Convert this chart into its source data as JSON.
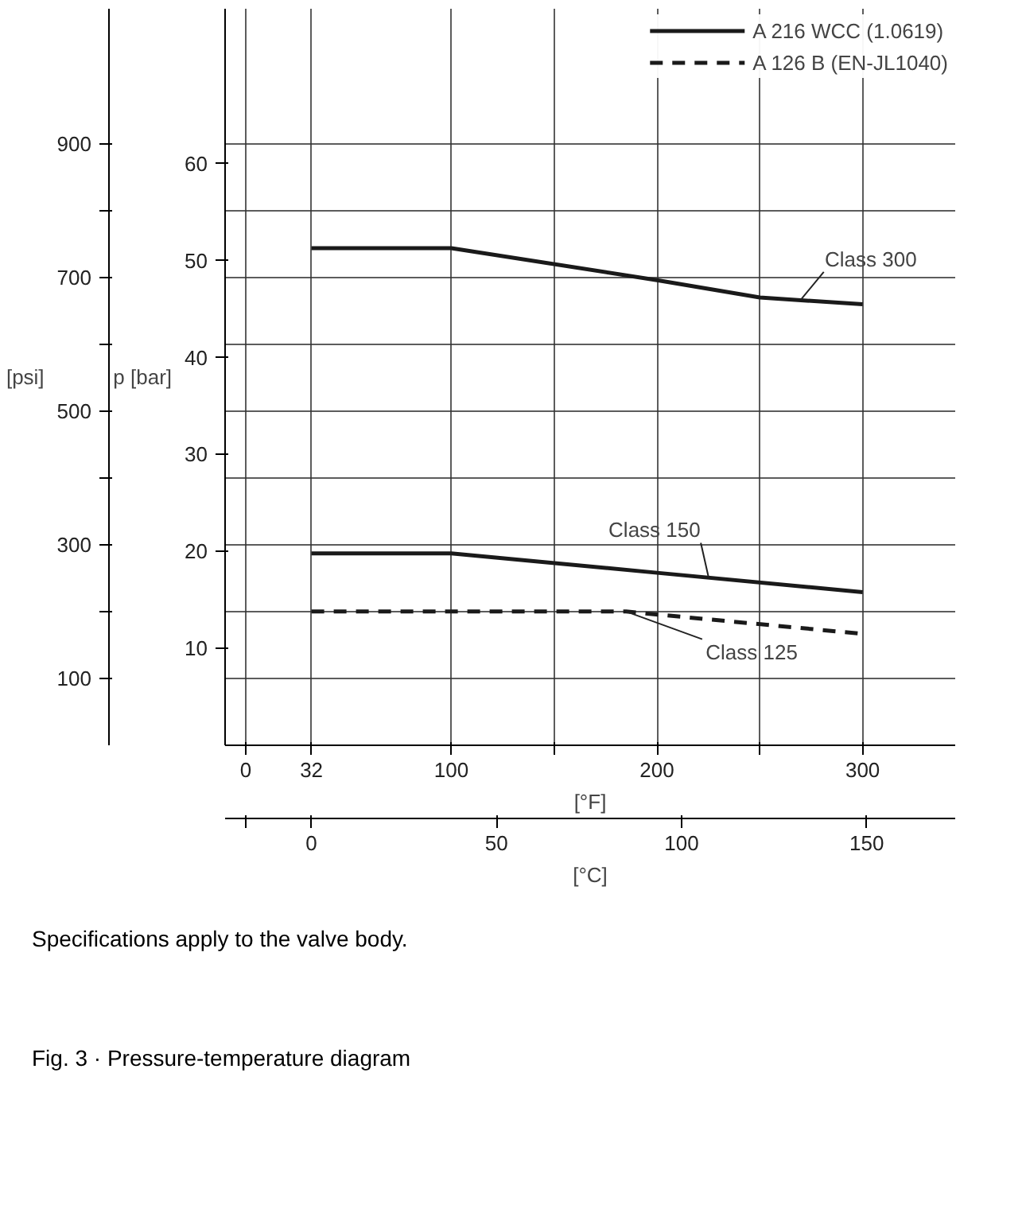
{
  "chart_data": {
    "type": "line",
    "series": [
      {
        "name": "A 216 WCC (1.0619)",
        "color": "#1a1a1a",
        "line_style": "solid",
        "x": [
          32,
          100,
          200,
          250,
          300
        ],
        "values": [
          51.3,
          51.3,
          48.0,
          46.2,
          45.5
        ]
      },
      {
        "color": "#1a1a1a",
        "line_style": "solid",
        "x": [
          32,
          100,
          200,
          300
        ],
        "values": [
          19.8,
          19.8,
          17.8,
          15.8
        ]
      },
      {
        "name": "A 126 B (EN-JL1040)",
        "color": "#1a1a1a",
        "line_style": "dashed",
        "x": [
          32,
          185,
          300
        ],
        "values": [
          13.8,
          13.8,
          11.5
        ]
      }
    ],
    "xlabel": "[°F]",
    "x2label": "[°C]",
    "ylabel": "p [bar]",
    "y2label": "[psi]",
    "xlim": [
      -10,
      345
    ],
    "xticks": [
      0,
      32,
      100,
      {
        "value": 150,
        "label": null
      },
      200,
      {
        "value": 250,
        "label": null
      },
      300
    ],
    "x2lim": [
      -23.3,
      173.9
    ],
    "x2ticks": [
      {
        "value": -17.8,
        "label": null
      },
      0,
      50,
      100,
      150
    ],
    "ylim": [
      0,
      76
    ],
    "yticks": [
      10,
      20,
      30,
      40,
      50,
      60
    ],
    "y2lim": [
      0,
      1102
    ],
    "y2ticks": [
      100,
      {
        "value": 200,
        "label": null
      },
      300,
      {
        "value": 400,
        "label": null
      },
      500,
      {
        "value": 600,
        "label": null
      },
      700,
      {
        "value": 800,
        "label": null
      },
      900
    ],
    "grid": true,
    "legend": "top right",
    "annotations": [
      {
        "text": "Class 300",
        "x": 270,
        "y": 46.0
      },
      {
        "text": "Class 150",
        "x": 225,
        "y": 17.4
      },
      {
        "text": "Class 125",
        "x": 185,
        "y": 13.8
      },
      "Specifications apply to the valve body.",
      "Fig. 3 · Pressure-temperature diagram"
    ]
  }
}
